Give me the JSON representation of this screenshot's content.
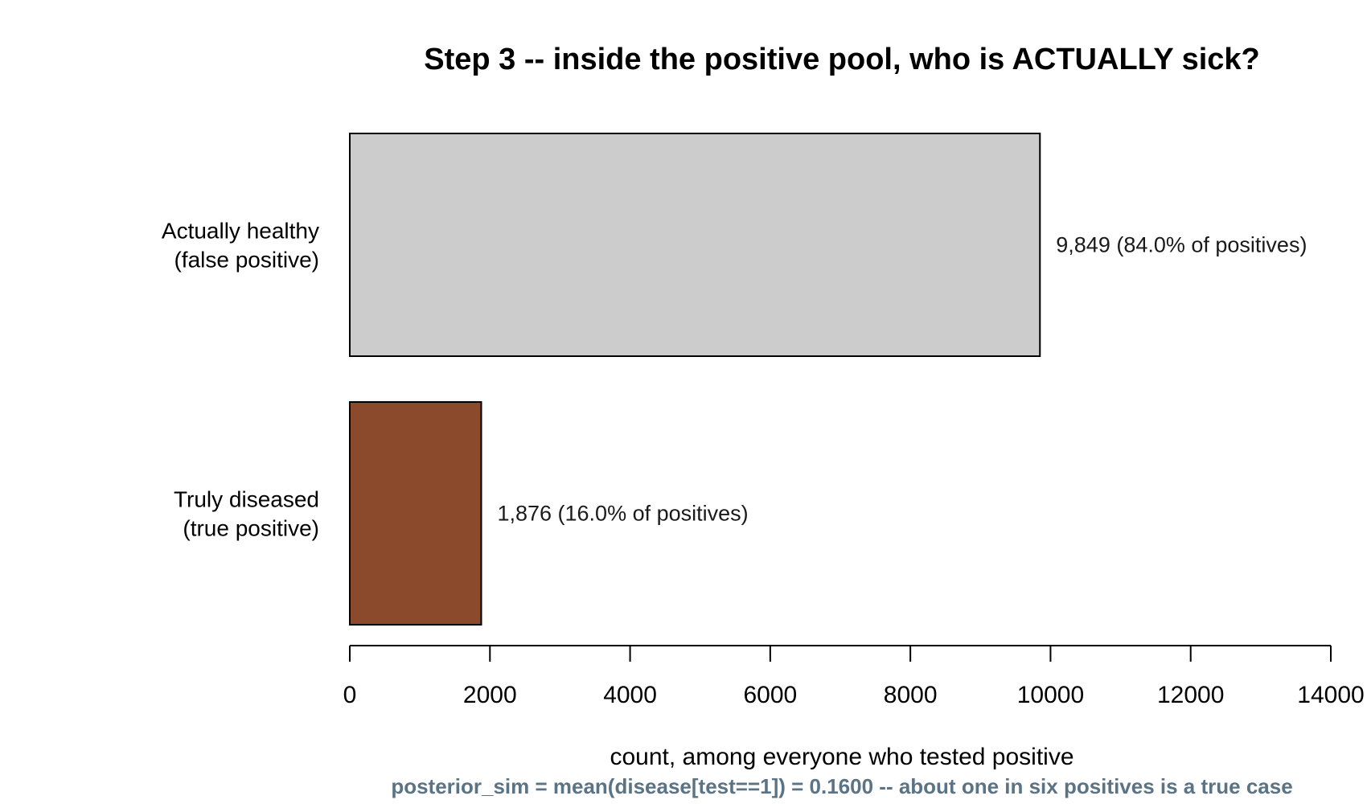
{
  "chart_data": {
    "type": "bar",
    "orientation": "horizontal",
    "title": "Step 3 -- inside the positive pool, who is ACTUALLY sick?",
    "subtitle": "posterior_sim = mean(disease[test==1]) = 0.1600 -- about one in six positives is a true case",
    "xlabel": "count, among everyone who tested positive",
    "ylabel": "",
    "xlim": [
      0,
      14000
    ],
    "xticks": [
      0,
      2000,
      4000,
      6000,
      8000,
      10000,
      12000,
      14000
    ],
    "grid": false,
    "bars": [
      {
        "label_lines": [
          "Actually healthy",
          "(false positive)"
        ],
        "value": 9849,
        "data_label": "9,849 (84.0% of positives)",
        "color": "#cccccc"
      },
      {
        "label_lines": [
          "Truly diseased",
          "(true positive)"
        ],
        "value": 1876,
        "data_label": "1,876 (16.0% of positives)",
        "color": "#8b4a2b"
      }
    ],
    "subtitle_color": "#5a7385",
    "bar_outline_color": "#000000"
  }
}
